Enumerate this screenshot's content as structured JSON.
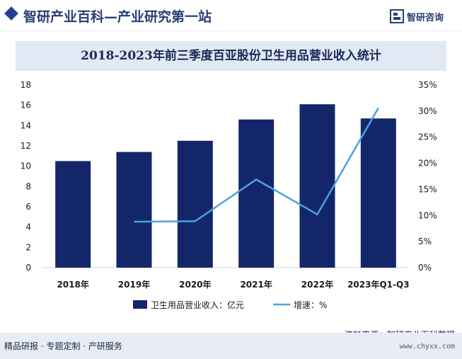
{
  "header": {
    "site_title": "智研产业百科—产业研究第一站",
    "brand_name": "智研咨询"
  },
  "chart_data": {
    "type": "bar",
    "title": "2018-2023年前三季度百亚股份卫生用品营业收入统计",
    "categories": [
      "2018年",
      "2019年",
      "2020年",
      "2021年",
      "2022年",
      "2023年Q1-Q3"
    ],
    "series": [
      {
        "name": "卫生用品营业收入：亿元",
        "type": "bar",
        "axis": "left",
        "color": "#14266a",
        "values": [
          10.5,
          11.4,
          12.5,
          14.6,
          16.1,
          14.7
        ]
      },
      {
        "name": "增速：%",
        "type": "line",
        "axis": "right",
        "color": "#4aa3e0",
        "values": [
          null,
          8.8,
          8.9,
          16.9,
          10.2,
          30.6
        ]
      }
    ],
    "y_left": {
      "min": 0,
      "max": 18,
      "ticks": [
        "0",
        "2",
        "4",
        "6",
        "8",
        "10",
        "12",
        "14",
        "16",
        "18"
      ]
    },
    "y_right": {
      "min": 0,
      "max": 35,
      "ticks": [
        "0%",
        "5%",
        "10%",
        "15%",
        "20%",
        "25%",
        "30%",
        "35%"
      ]
    },
    "grid": false,
    "legend_position": "bottom"
  },
  "footer": {
    "source": "资料来源：智研产业百科整理",
    "slogan": "精品研报 · 专题定制 · 产研服务",
    "url": "www.chyxx.com"
  }
}
